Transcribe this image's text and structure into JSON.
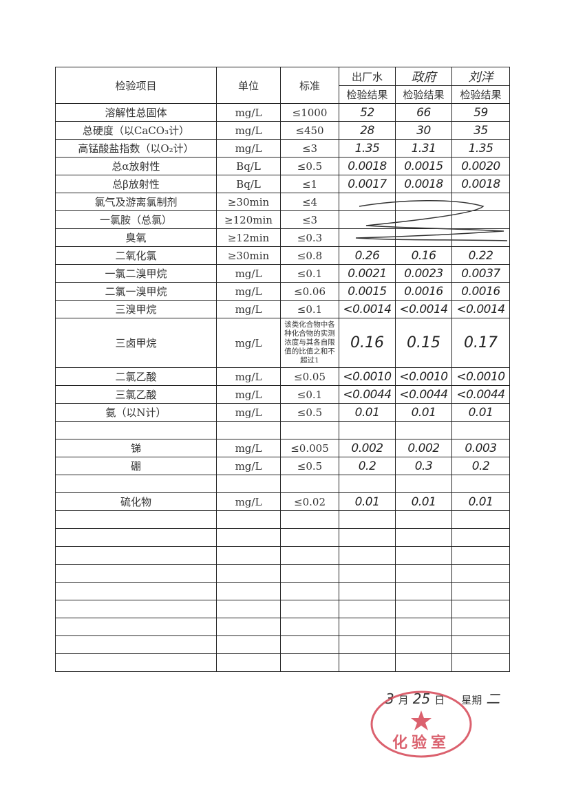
{
  "table": {
    "header": {
      "item": "检验项目",
      "unit": "单位",
      "standard": "标准",
      "sites": [
        "出厂水",
        "政府",
        "刘洋"
      ],
      "result_label": "检验结果"
    },
    "rows": [
      {
        "item": "溶解性总固体",
        "unit": "mg/L",
        "standard": "≤1000",
        "values": [
          "52",
          "66",
          "59"
        ]
      },
      {
        "item": "总硬度（以CaCO₃计）",
        "unit": "mg/L",
        "standard": "≤450",
        "values": [
          "28",
          "30",
          "35"
        ]
      },
      {
        "item": "高锰酸盐指数（以O₂计）",
        "unit": "mg/L",
        "standard": "≤3",
        "values": [
          "1.35",
          "1.31",
          "1.35"
        ]
      },
      {
        "item": "总α放射性",
        "unit": "Bq/L",
        "standard": "≤0.5",
        "values": [
          "0.0018",
          "0.0015",
          "0.0020"
        ]
      },
      {
        "item": "总β放射性",
        "unit": "Bq/L",
        "standard": "≤1",
        "values": [
          "0.0017",
          "0.0018",
          "0.0018"
        ]
      },
      {
        "item": "氯气及游离氯制剂",
        "unit": "≥30min",
        "standard": "≤4",
        "values": [
          "",
          "",
          ""
        ]
      },
      {
        "item": "一氯胺（总氯）",
        "unit": "≥120min",
        "standard": "≤3",
        "values": [
          "",
          "",
          ""
        ]
      },
      {
        "item": "臭氧",
        "unit": "≥12min",
        "standard": "≤0.3",
        "values": [
          "",
          "",
          ""
        ]
      },
      {
        "item": "二氧化氯",
        "unit": "≥30min",
        "standard": "≤0.8",
        "values": [
          "0.26",
          "0.16",
          "0.22"
        ]
      },
      {
        "item": "一氯二溴甲烷",
        "unit": "mg/L",
        "standard": "≤0.1",
        "values": [
          "0.0021",
          "0.0023",
          "0.0037"
        ]
      },
      {
        "item": "二氯一溴甲烷",
        "unit": "mg/L",
        "standard": "≤0.06",
        "values": [
          "0.0015",
          "0.0016",
          "0.0016"
        ]
      },
      {
        "item": "三溴甲烷",
        "unit": "mg/L",
        "standard": "≤0.1",
        "values": [
          "<0.0014",
          "<0.0014",
          "<0.0014"
        ]
      },
      {
        "item": "三卤甲烷",
        "unit": "mg/L",
        "standard": "该类化合物中各种化合物的实测浓度与其各自限值的比值之和不超过1",
        "values": [
          "0.16",
          "0.15",
          "0.17"
        ],
        "tall": true
      },
      {
        "item": "二氯乙酸",
        "unit": "mg/L",
        "standard": "≤0.05",
        "values": [
          "<0.0010",
          "<0.0010",
          "<0.0010"
        ]
      },
      {
        "item": "三氯乙酸",
        "unit": "mg/L",
        "standard": "≤0.1",
        "values": [
          "<0.0044",
          "<0.0044",
          "<0.0044"
        ]
      },
      {
        "item": "氨（以N计）",
        "unit": "mg/L",
        "standard": "≤0.5",
        "values": [
          "0.01",
          "0.01",
          "0.01"
        ]
      },
      {
        "item": "",
        "unit": "",
        "standard": "",
        "values": [
          "",
          "",
          ""
        ]
      },
      {
        "item": "锑",
        "unit": "mg/L",
        "standard": "≤0.005",
        "values": [
          "0.002",
          "0.002",
          "0.003"
        ]
      },
      {
        "item": "硼",
        "unit": "mg/L",
        "standard": "≤0.5",
        "values": [
          "0.2",
          "0.3",
          "0.2"
        ]
      },
      {
        "item": "",
        "unit": "",
        "standard": "",
        "values": [
          "",
          "",
          ""
        ]
      },
      {
        "item": "硫化物",
        "unit": "mg/L",
        "standard": "≤0.02",
        "values": [
          "0.01",
          "0.01",
          "0.01"
        ]
      }
    ],
    "empty_rows": 9
  },
  "footer": {
    "month": "3",
    "month_label": "月",
    "day": "25",
    "day_label": "日",
    "weekday_label": "星期",
    "weekday": "二"
  },
  "stamp": {
    "text": "化验室",
    "color": "#d23a4a"
  }
}
